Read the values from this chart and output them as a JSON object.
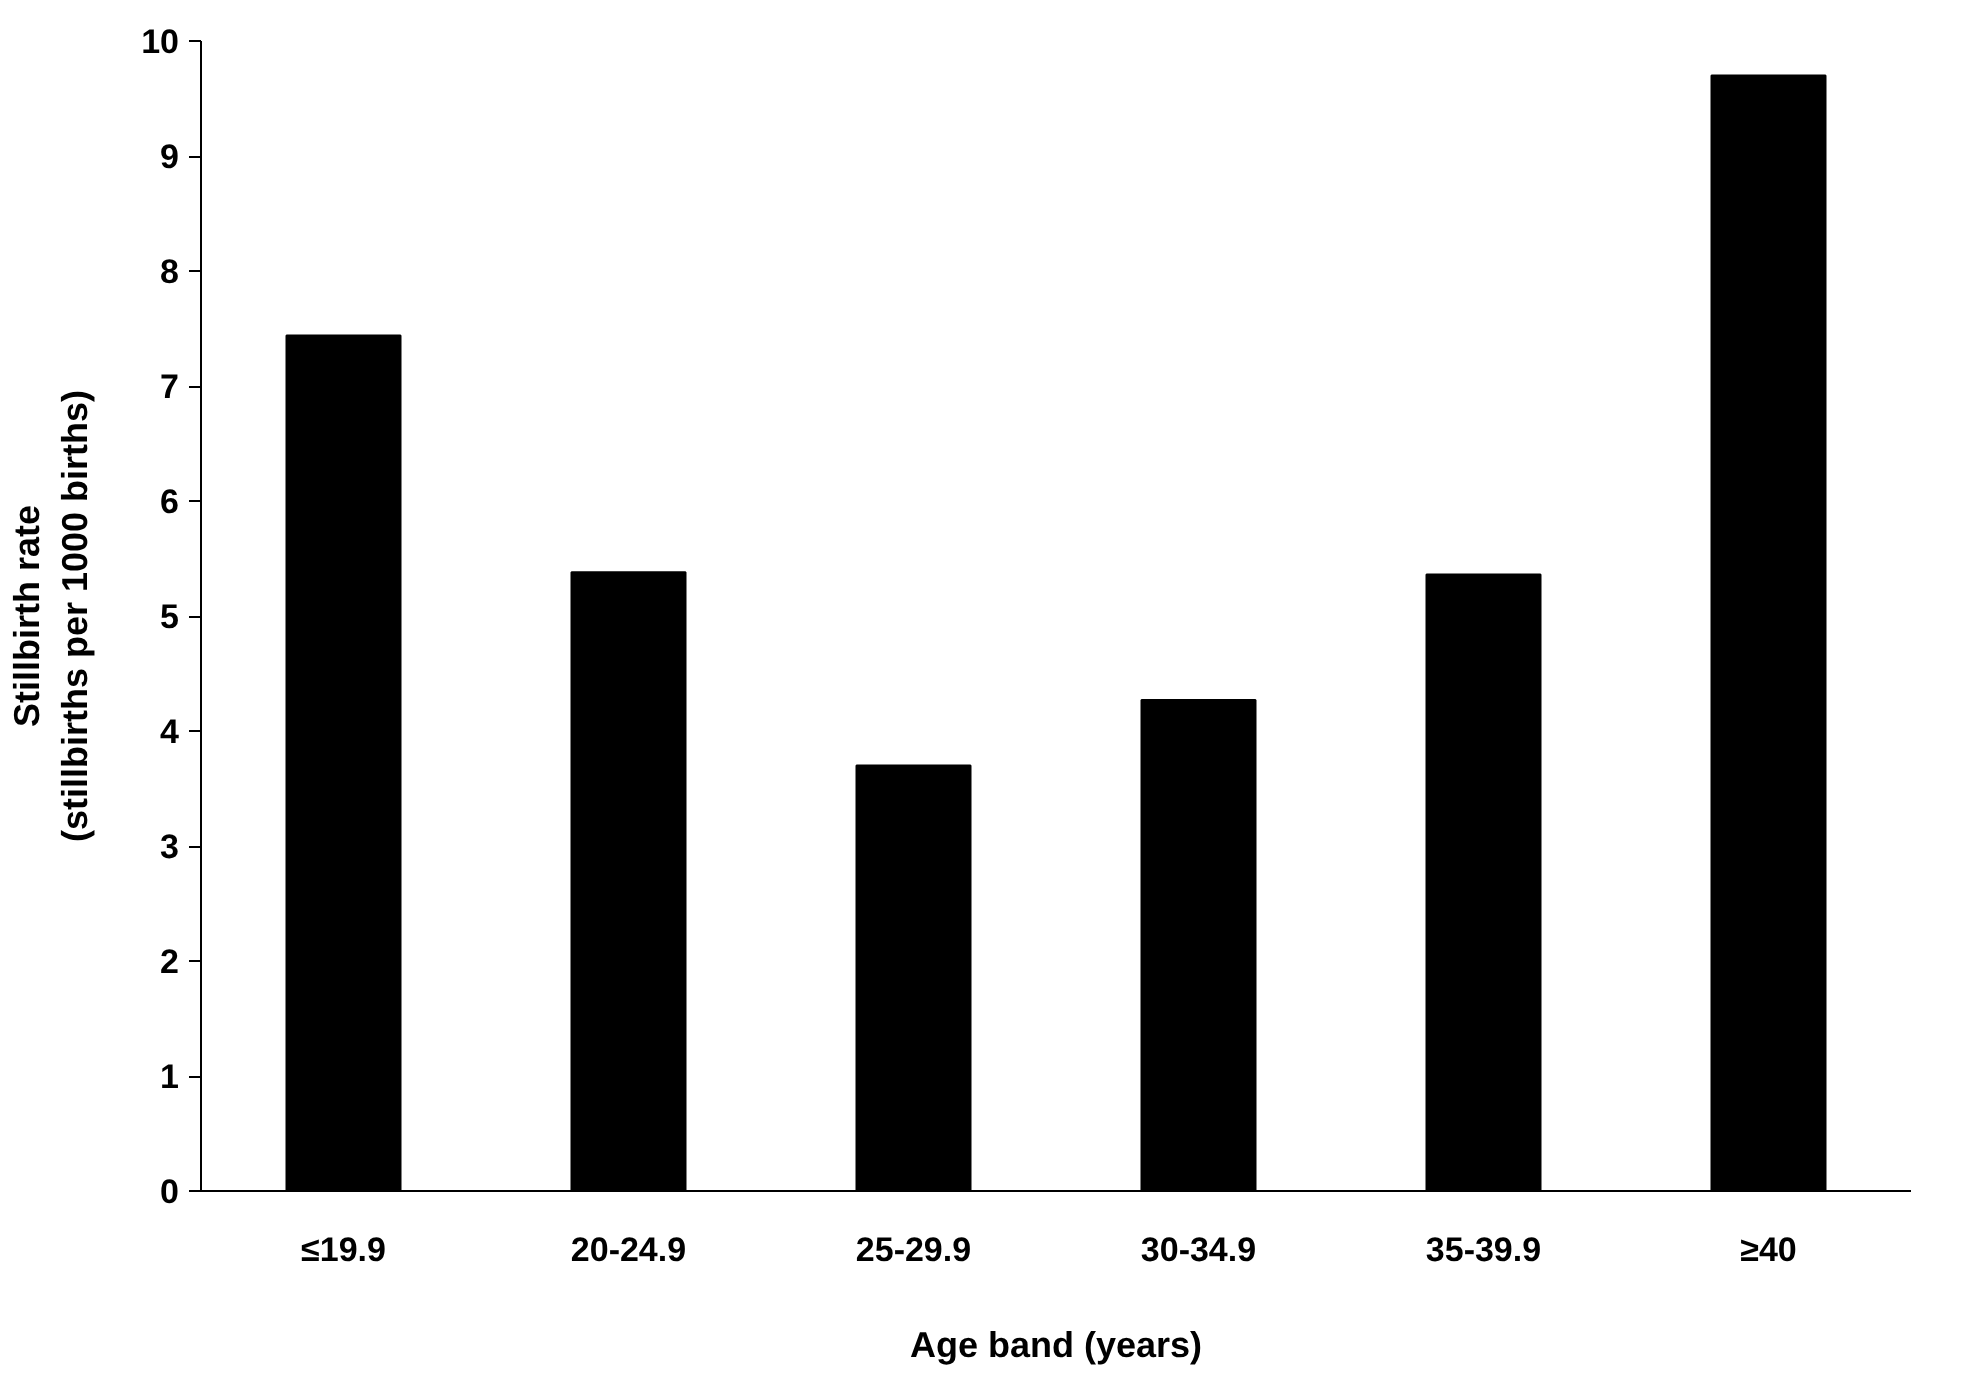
{
  "chart_data": {
    "type": "bar",
    "xlabel": "Age band (years)",
    "ylabel": "Stillbirth rate\n(stillbirths per 1000 births)",
    "categories": [
      "≤19.9",
      "20-24.9",
      "25-29.9",
      "30-34.9",
      "35-39.9",
      "≥40"
    ],
    "values": [
      7.44,
      5.38,
      3.7,
      4.27,
      5.36,
      9.7
    ],
    "color": "#000000",
    "ylim": [
      0,
      10
    ],
    "yticks": [
      0,
      1,
      2,
      3,
      4,
      5,
      6,
      7,
      8,
      9,
      10
    ],
    "grid": false
  }
}
